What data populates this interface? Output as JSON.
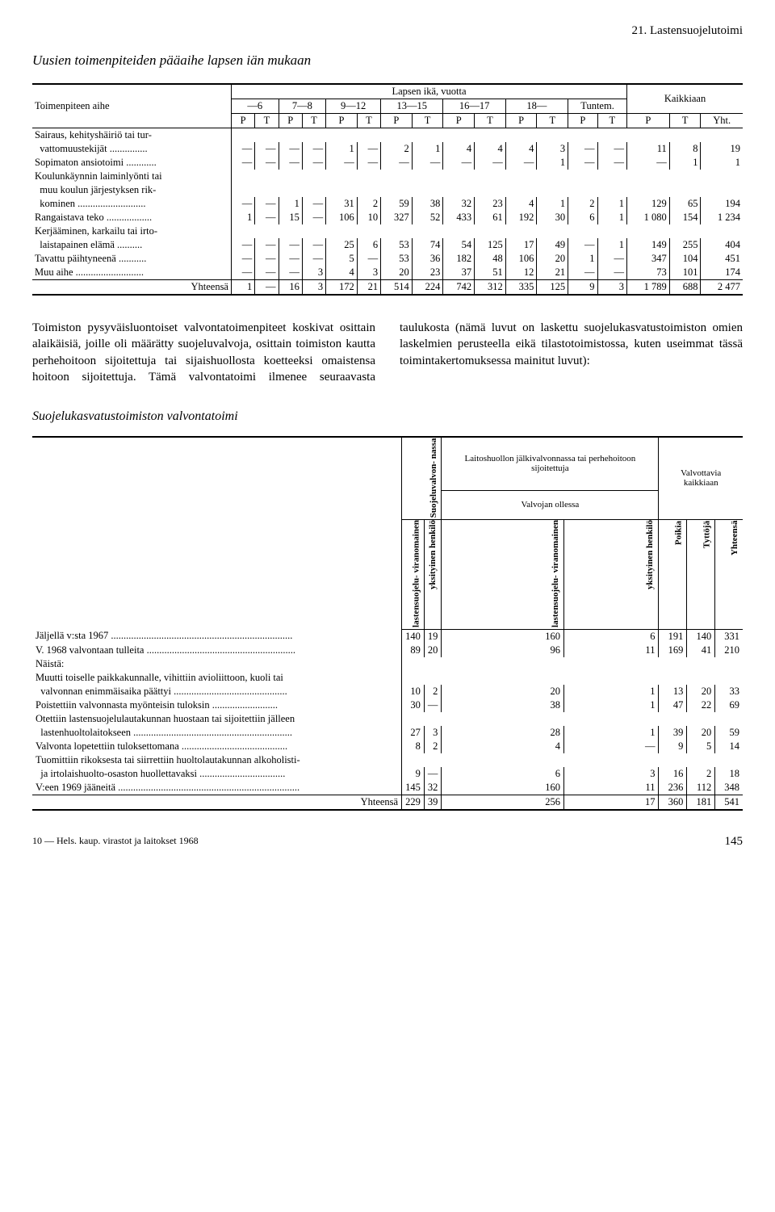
{
  "header_right": "21. Lastensuojelutoimi",
  "title1": "Uusien toimenpiteiden pääaihe lapsen iän mukaan",
  "table1": {
    "group_header": "Lapsen ikä, vuotta",
    "kaikkiaan": "Kaikkiaan",
    "row_header": "Toimenpiteen aihe",
    "age_groups": [
      "—6",
      "7—8",
      "9—12",
      "13—15",
      "16—17",
      "18—",
      "Tuntem."
    ],
    "pt_labels": [
      "P",
      "T"
    ],
    "sum_labels": [
      "P",
      "T",
      "Yht."
    ],
    "rows": [
      {
        "label": "Sairaus, kehityshäiriö tai tur-",
        "cells": []
      },
      {
        "label": "  vattomuustekijät ...............",
        "cells": [
          "—",
          "—",
          "—",
          "—",
          "1",
          "—",
          "2",
          "1",
          "4",
          "4",
          "4",
          "3",
          "—",
          "—",
          "11",
          "8",
          "19"
        ]
      },
      {
        "label": "Sopimaton ansiotoimi ............",
        "cells": [
          "—",
          "—",
          "—",
          "—",
          "—",
          "—",
          "—",
          "—",
          "—",
          "—",
          "—",
          "1",
          "—",
          "—",
          "—",
          "1",
          "1"
        ]
      },
      {
        "label": "Koulunkäynnin laiminlyönti tai",
        "cells": []
      },
      {
        "label": "  muu koulun järjestyksen rik-",
        "cells": []
      },
      {
        "label": "  kominen ...........................",
        "cells": [
          "—",
          "—",
          "1",
          "—",
          "31",
          "2",
          "59",
          "38",
          "32",
          "23",
          "4",
          "1",
          "2",
          "1",
          "129",
          "65",
          "194"
        ]
      },
      {
        "label": "Rangaistava teko ..................",
        "cells": [
          "1",
          "—",
          "15",
          "—",
          "106",
          "10",
          "327",
          "52",
          "433",
          "61",
          "192",
          "30",
          "6",
          "1",
          "1 080",
          "154",
          "1 234"
        ]
      },
      {
        "label": "Kerjääminen, karkailu tai irto-",
        "cells": []
      },
      {
        "label": "  laistapainen elämä ..........",
        "cells": [
          "—",
          "—",
          "—",
          "—",
          "25",
          "6",
          "53",
          "74",
          "54",
          "125",
          "17",
          "49",
          "—",
          "1",
          "149",
          "255",
          "404"
        ]
      },
      {
        "label": "Tavattu päihtyneenä ...........",
        "cells": [
          "—",
          "—",
          "—",
          "—",
          "5",
          "—",
          "53",
          "36",
          "182",
          "48",
          "106",
          "20",
          "1",
          "—",
          "347",
          "104",
          "451"
        ]
      },
      {
        "label": "Muu aihe ...........................",
        "cells": [
          "—",
          "—",
          "—",
          "3",
          "4",
          "3",
          "20",
          "23",
          "37",
          "51",
          "12",
          "21",
          "—",
          "—",
          "73",
          "101",
          "174"
        ]
      }
    ],
    "total_label": "Yhteensä",
    "total": [
      "1",
      "—",
      "16",
      "3",
      "172",
      "21",
      "514",
      "224",
      "742",
      "312",
      "335",
      "125",
      "9",
      "3",
      "1 789",
      "688",
      "2 477"
    ]
  },
  "body_text": "Toimiston pysyväisluontoiset valvontatoimenpiteet koskivat osittain alaikäisiä, joille oli määrätty suojeluvalvoja, osittain toimiston kautta perhehoitoon sijoitettuja tai sijaishuollosta koetteeksi omaistensa hoitoon sijoitettuja. Tämä valvontatoimi ilmenee seuraavasta taulukosta (nämä luvut on laskettu suojelukasvatustoimiston omien laskelmien perusteella eikä tilastotoimistossa, kuten useimmat tässä toimintakertomuksessa mainitut luvut):",
  "title2": "Suojelukasvatustoimiston valvontatoimi",
  "table2": {
    "col_group1": "Suojeluvalvon-\nnassa",
    "col_group2": "Laitoshuollon jälkivalvonnassa tai perhehoitoon sijoitettuja",
    "col_group3": "Valvottavia kaikkiaan",
    "sub_header": "Valvojan ollessa",
    "headers": [
      "lastensuojelu-\nviranomainen",
      "yksityinen\nhenkilö",
      "lastensuojelu-\nviranomainen",
      "yksityinen\nhenkilö",
      "Poikia",
      "Tyttöjä",
      "Yhteensä"
    ],
    "rows": [
      {
        "label": "Jäljellä v:sta 1967 ........................................................................",
        "cells": [
          "140",
          "19",
          "160",
          "6",
          "191",
          "140",
          "331"
        ]
      },
      {
        "label": "V. 1968 valvontaan tulleita ...........................................................",
        "cells": [
          "89",
          "20",
          "96",
          "11",
          "169",
          "41",
          "210"
        ]
      },
      {
        "label": "Näistä:",
        "cells": []
      },
      {
        "label": "Muutti toiselle paikkakunnalle, vihittiin avioliittoon, kuoli tai",
        "cells": []
      },
      {
        "label": "  valvonnan enimmäisaika päättyi .............................................",
        "cells": [
          "10",
          "2",
          "20",
          "1",
          "13",
          "20",
          "33"
        ]
      },
      {
        "label": "Poistettiin valvonnasta myönteisin tuloksin ..........................",
        "cells": [
          "30",
          "—",
          "38",
          "1",
          "47",
          "22",
          "69"
        ]
      },
      {
        "label": "Otettiin lastensuojelulautakunnan huostaan tai sijoitettiin jälleen",
        "cells": []
      },
      {
        "label": "  lastenhuoltolaitokseen ...............................................................",
        "cells": [
          "27",
          "3",
          "28",
          "1",
          "39",
          "20",
          "59"
        ]
      },
      {
        "label": "Valvonta lopetettiin tuloksettomana ..........................................",
        "cells": [
          "8",
          "2",
          "4",
          "—",
          "9",
          "5",
          "14"
        ]
      },
      {
        "label": "Tuomittiin rikoksesta tai siirrettiin huoltolautakunnan alkoholisti-",
        "cells": []
      },
      {
        "label": "  ja irtolaishuolto-osaston huollettavaksi ..................................",
        "cells": [
          "9",
          "—",
          "6",
          "3",
          "16",
          "2",
          "18"
        ]
      },
      {
        "label": "V:een 1969 jääneitä ........................................................................",
        "cells": [
          "145",
          "32",
          "160",
          "11",
          "236",
          "112",
          "348"
        ]
      }
    ],
    "total_label": "Yhteensä",
    "total": [
      "229",
      "39",
      "256",
      "17",
      "360",
      "181",
      "541"
    ]
  },
  "footer_left": "10 — Hels. kaup. virastot ja laitokset 1968",
  "page_num": "145"
}
